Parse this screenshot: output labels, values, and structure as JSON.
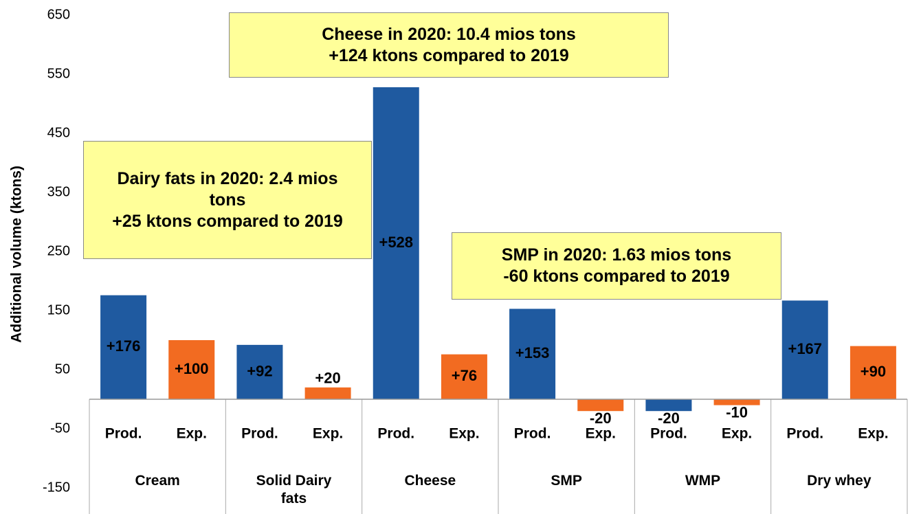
{
  "chart_data": {
    "type": "bar",
    "y_label": "Additional volume (ktons)",
    "categories": [
      "Cream",
      "Solid Dairy fats",
      "Cheese",
      "SMP",
      "WMP",
      "Dry whey"
    ],
    "series": [
      {
        "name": "Prod.",
        "color": "#1f5aa0",
        "values": [
          176,
          92,
          528,
          153,
          -20,
          167
        ],
        "value_labels": [
          "+176",
          "+92",
          "+528",
          "+153",
          "-20",
          "+167"
        ]
      },
      {
        "name": "Exp.",
        "color": "#f26b21",
        "values": [
          100,
          20,
          76,
          -20,
          -10,
          90
        ],
        "value_labels": [
          "+100",
          "+20",
          "+76",
          "-20",
          "-10",
          "+90"
        ]
      }
    ],
    "ylim": [
      -150,
      650
    ],
    "yticks": [
      -150,
      -50,
      50,
      150,
      250,
      350,
      450,
      550,
      650
    ],
    "annotations": [
      {
        "lines": [
          "Cheese in 2020: 10.4 mios tons",
          "+124 ktons compared to 2019"
        ]
      },
      {
        "lines": [
          "Dairy fats in 2020: 2.4 mios tons",
          "+25 ktons compared to 2019"
        ]
      },
      {
        "lines": [
          "SMP in 2020: 1.63 mios tons",
          "-60 ktons compared to 2019"
        ]
      }
    ]
  }
}
